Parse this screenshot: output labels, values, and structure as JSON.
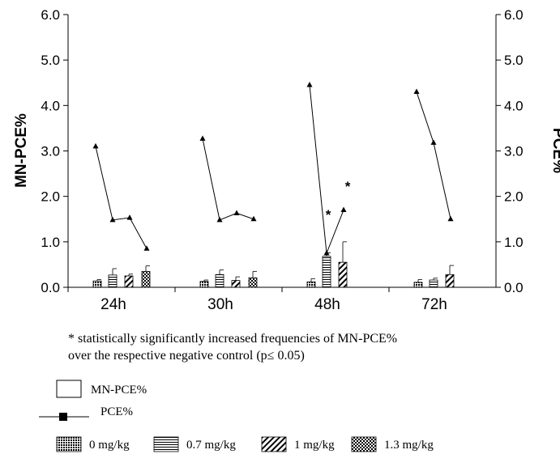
{
  "chart_data": {
    "type": "bar",
    "categories": [
      "24h",
      "30h",
      "48h",
      "72h"
    ],
    "ylabel": "MN-PCE%",
    "y2label": "PCE%",
    "ylim": [
      0,
      6
    ],
    "y2lim": [
      0,
      6
    ],
    "yticks": [
      "0.0",
      "1.0",
      "2.0",
      "3.0",
      "4.0",
      "5.0",
      "6.0"
    ],
    "grid": false,
    "series": [
      {
        "name": "0 mg/kg",
        "pattern": "dots",
        "values": [
          0.14,
          0.13,
          0.12,
          0.11
        ],
        "errors": [
          0.03,
          0.03,
          0.07,
          0.06
        ]
      },
      {
        "name": "0.7 mg/kg",
        "pattern": "horizontal",
        "values": [
          0.27,
          0.28,
          0.68,
          0.16
        ],
        "errors": [
          0.14,
          0.1,
          0.08,
          0.04
        ]
      },
      {
        "name": "1 mg/kg",
        "pattern": "diagonal",
        "values": [
          0.25,
          0.15,
          0.55,
          0.28
        ],
        "errors": [
          0.04,
          0.08,
          0.45,
          0.2
        ]
      },
      {
        "name": "1.3 mg/kg",
        "pattern": "checker",
        "values": [
          0.35,
          0.21,
          null,
          null
        ],
        "errors": [
          0.12,
          0.14,
          null,
          null
        ]
      }
    ],
    "pce_line": {
      "name": "PCE%",
      "values": [
        [
          3.1,
          1.48,
          1.53,
          0.85
        ],
        [
          3.27,
          1.48,
          1.63,
          1.5
        ],
        [
          4.45,
          0.75,
          1.7,
          null
        ],
        [
          4.3,
          3.18,
          1.5,
          null
        ]
      ]
    },
    "significance_marks": [
      {
        "category": "48h",
        "series": "0.7 mg/kg",
        "label": "*"
      },
      {
        "category": "48h",
        "series": "1 mg/kg",
        "label": "*"
      }
    ]
  },
  "footnote": {
    "line1": "* statistically significantly increased frequencies of  MN-PCE%",
    "line2": "over the respective negative control (p≤ 0.05)"
  },
  "legend": {
    "mnpce": "MN-PCE%",
    "pce": "PCE%",
    "doses": [
      "0 mg/kg",
      "0.7 mg/kg",
      "1 mg/kg",
      "1.3 mg/kg"
    ]
  }
}
